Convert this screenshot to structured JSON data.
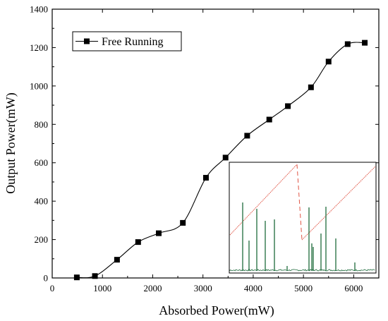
{
  "chart_data": {
    "type": "line",
    "xlabel": "Absorbed Power(mW)",
    "ylabel": "Output Power(mW)",
    "xlim": [
      0,
      6500
    ],
    "ylim": [
      0,
      1400
    ],
    "xticks": [
      0,
      1000,
      2000,
      3000,
      4000,
      5000,
      6000
    ],
    "yticks": [
      0,
      200,
      400,
      600,
      800,
      1000,
      1200,
      1400
    ],
    "legend_position": "top-left",
    "grid": false,
    "series": [
      {
        "name": "Free Running",
        "marker": "square",
        "color": "#000000",
        "x": [
          490,
          850,
          1290,
          1710,
          2120,
          2600,
          3060,
          3450,
          3880,
          4320,
          4690,
          5150,
          5500,
          5880,
          6220
        ],
        "y": [
          3,
          10,
          95,
          187,
          233,
          287,
          522,
          627,
          741,
          825,
          895,
          993,
          1127,
          1218,
          1225
        ]
      }
    ],
    "inset": {
      "type": "line",
      "colors": {
        "pulse_train": "#1e6b3c",
        "ramp": "#e05545"
      }
    }
  }
}
